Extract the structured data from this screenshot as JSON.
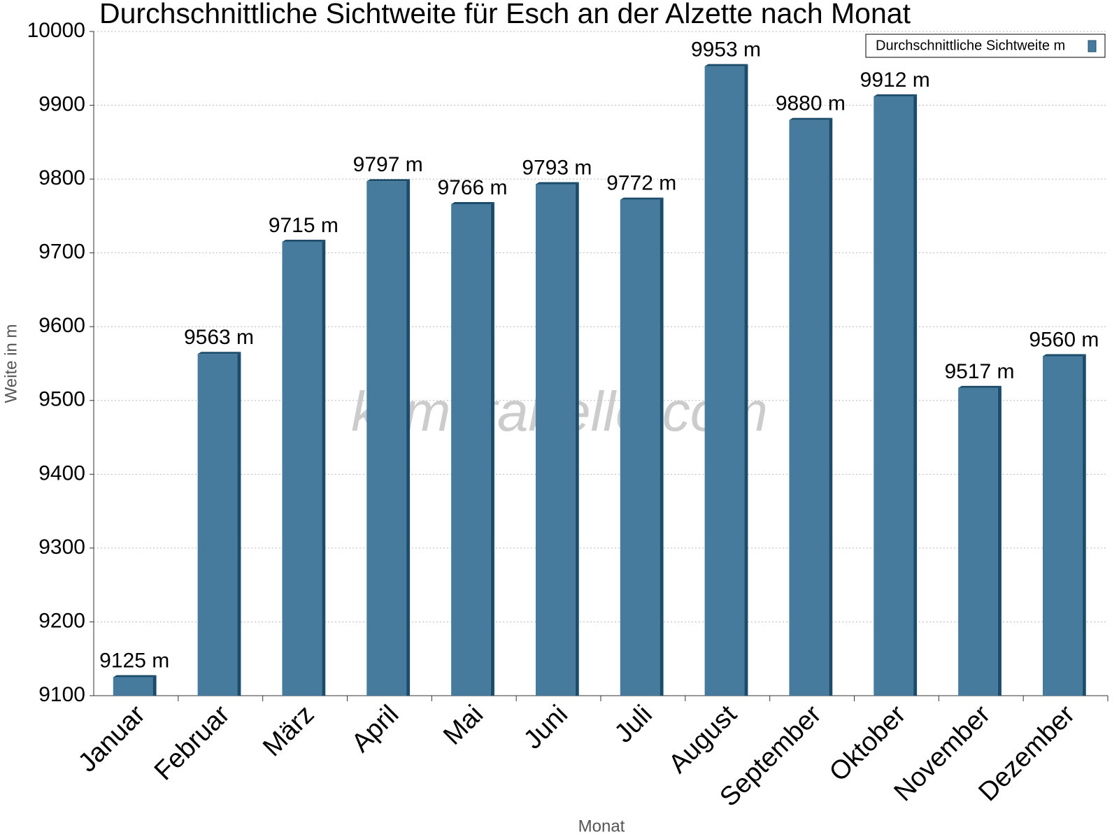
{
  "chart_data": {
    "type": "bar",
    "title": "Durchschnittliche Sichtweite für Esch an der Alzette nach Monat",
    "x_label": "Monat",
    "y_label": "Weite in m",
    "watermark": "klimatabelle.com",
    "categories": [
      "Januar",
      "Februar",
      "März",
      "April",
      "Mai",
      "Juni",
      "Juli",
      "August",
      "September",
      "Oktober",
      "November",
      "Dezember"
    ],
    "series": [
      {
        "name": "Durchschnittliche Sichtweite m",
        "color": "#477b9e",
        "values": [
          9125,
          9563,
          9715,
          9797,
          9766,
          9793,
          9772,
          9953,
          9880,
          9912,
          9517,
          9560
        ],
        "value_labels": [
          "9125 m",
          "9563 m",
          "9715 m",
          "9797 m",
          "9766 m",
          "9793 m",
          "9772 m",
          "9953 m",
          "9880 m",
          "9912 m",
          "9517 m",
          "9560 m"
        ]
      }
    ],
    "ylim": [
      9100,
      10000
    ],
    "yticks": [
      9100,
      9200,
      9300,
      9400,
      9500,
      9600,
      9700,
      9800,
      9900,
      10000
    ],
    "grid": true,
    "legend": "top-right"
  }
}
